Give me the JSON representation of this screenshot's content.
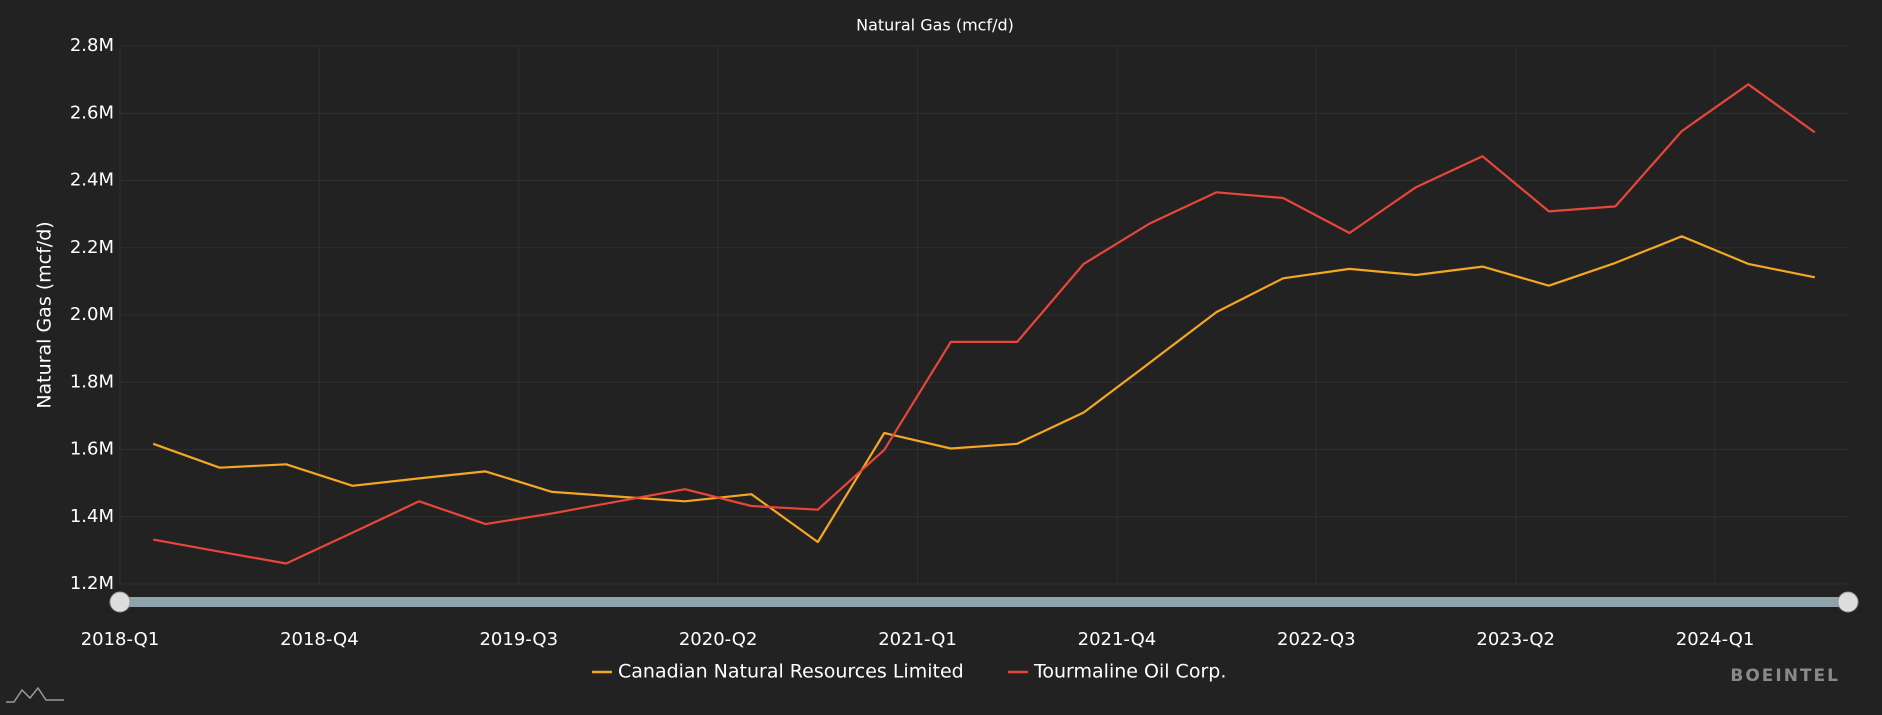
{
  "chart_data": {
    "type": "line",
    "title": "Natural Gas (mcf/d)",
    "y_label": "Natural Gas (mcf/d)",
    "watermark": "BOEINTEL",
    "categories": [
      "2018-Q1",
      null,
      null,
      "2018-Q4",
      null,
      null,
      "2019-Q3",
      null,
      null,
      "2020-Q2",
      null,
      null,
      "2021-Q1",
      null,
      null,
      "2021-Q4",
      null,
      null,
      "2022-Q3",
      null,
      null,
      "2023-Q2",
      null,
      null,
      "2024-Q1",
      null
    ],
    "series": [
      {
        "name": "Canadian Natural Resources Limited",
        "color": "#f5a623",
        "values": [
          1617000,
          1546000,
          1556000,
          1492000,
          1514000,
          1535000,
          1474000,
          1460000,
          1446000,
          1467000,
          1325000,
          1649000,
          1603000,
          1617000,
          1710000,
          1859000,
          2009000,
          2109000,
          2137000,
          2119000,
          2144000,
          2087000,
          2155000,
          2234000,
          2152000,
          2112000
        ]
      },
      {
        "name": "Tourmaline Oil Corp.",
        "color": "#e8463a",
        "values": [
          1332000,
          1296000,
          1261000,
          1353000,
          1446000,
          1378000,
          1410000,
          1446000,
          1482000,
          1432000,
          1421000,
          1599000,
          1920000,
          1920000,
          2152000,
          2273000,
          2365000,
          2348000,
          2244000,
          2380000,
          2472000,
          2308000,
          2323000,
          2547000,
          2686000,
          2543000
        ]
      }
    ],
    "ylim": [
      1200000,
      2800000
    ],
    "yticks": [
      {
        "value": 1200000,
        "label": "1.2M"
      },
      {
        "value": 1400000,
        "label": "1.4M"
      },
      {
        "value": 1600000,
        "label": "1.6M"
      },
      {
        "value": 1800000,
        "label": "1.8M"
      },
      {
        "value": 2000000,
        "label": "2.0M"
      },
      {
        "value": 2200000,
        "label": "2.2M"
      },
      {
        "value": 2400000,
        "label": "2.4M"
      },
      {
        "value": 2600000,
        "label": "2.6M"
      },
      {
        "value": 2800000,
        "label": "2.8M"
      }
    ],
    "grid": true,
    "legend": "bottom"
  }
}
